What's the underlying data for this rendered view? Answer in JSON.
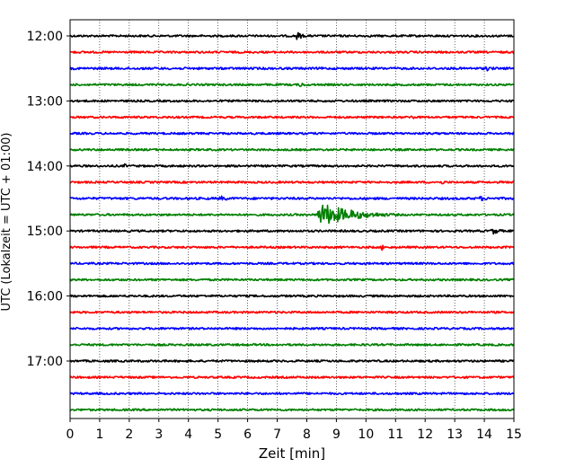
{
  "chart_data": {
    "type": "line",
    "subtype": "seismogram-helicorder",
    "xlabel": "Zeit  [min]",
    "ylabel": "UTC (Lokalzeit = UTC + 01:00)",
    "xlim": [
      0,
      15
    ],
    "x_ticks": [
      0,
      1,
      2,
      3,
      4,
      5,
      6,
      7,
      8,
      9,
      10,
      11,
      12,
      13,
      14,
      15
    ],
    "y_tick_labels": [
      "12:00",
      "13:00",
      "14:00",
      "15:00",
      "16:00",
      "17:00"
    ],
    "grid": "vertical dotted lines at each minute",
    "trace_colors": [
      "#000000",
      "#ff0000",
      "#0000ff",
      "#008000"
    ],
    "rows": [
      {
        "start": "12:00",
        "color": "#000000",
        "amplitude": 1.0,
        "events": [
          {
            "min": 7.6,
            "amp": 5,
            "dur": 0.6
          }
        ]
      },
      {
        "start": "12:15",
        "color": "#ff0000",
        "amplitude": 1.0,
        "events": []
      },
      {
        "start": "12:30",
        "color": "#0000ff",
        "amplitude": 1.1,
        "events": [
          {
            "min": 14.0,
            "amp": 3,
            "dur": 0.8
          }
        ]
      },
      {
        "start": "12:45",
        "color": "#008000",
        "amplitude": 1.0,
        "events": [
          {
            "min": 7.7,
            "amp": 3,
            "dur": 0.6
          }
        ]
      },
      {
        "start": "13:00",
        "color": "#000000",
        "amplitude": 1.0,
        "events": []
      },
      {
        "start": "13:15",
        "color": "#ff0000",
        "amplitude": 1.0,
        "events": [
          {
            "min": 11.5,
            "amp": 2.5,
            "dur": 0.5
          }
        ]
      },
      {
        "start": "13:30",
        "color": "#0000ff",
        "amplitude": 1.0,
        "events": []
      },
      {
        "start": "13:45",
        "color": "#008000",
        "amplitude": 1.0,
        "events": [
          {
            "min": 1.0,
            "amp": 2,
            "dur": 0.4
          }
        ]
      },
      {
        "start": "14:00",
        "color": "#000000",
        "amplitude": 1.0,
        "events": [
          {
            "min": 1.8,
            "amp": 2.5,
            "dur": 0.4
          }
        ]
      },
      {
        "start": "14:15",
        "color": "#ff0000",
        "amplitude": 1.0,
        "events": [
          {
            "min": 12.5,
            "amp": 2.5,
            "dur": 0.6
          }
        ]
      },
      {
        "start": "14:30",
        "color": "#0000ff",
        "amplitude": 1.1,
        "events": [
          {
            "min": 5.0,
            "amp": 3,
            "dur": 1.0
          },
          {
            "min": 13.8,
            "amp": 3,
            "dur": 0.8
          }
        ]
      },
      {
        "start": "14:45",
        "color": "#008000",
        "amplitude": 1.0,
        "events": [
          {
            "min": 8.3,
            "amp": 13,
            "dur": 2.8
          }
        ]
      },
      {
        "start": "15:00",
        "color": "#000000",
        "amplitude": 1.0,
        "events": [
          {
            "min": 14.2,
            "amp": 4,
            "dur": 0.8
          }
        ]
      },
      {
        "start": "15:15",
        "color": "#ff0000",
        "amplitude": 1.0,
        "events": [
          {
            "min": 10.5,
            "amp": 7,
            "dur": 0.15
          }
        ]
      },
      {
        "start": "15:30",
        "color": "#0000ff",
        "amplitude": 1.0,
        "events": []
      },
      {
        "start": "15:45",
        "color": "#008000",
        "amplitude": 1.0,
        "events": []
      },
      {
        "start": "16:00",
        "color": "#000000",
        "amplitude": 1.0,
        "events": []
      },
      {
        "start": "16:15",
        "color": "#ff0000",
        "amplitude": 1.0,
        "events": []
      },
      {
        "start": "16:30",
        "color": "#0000ff",
        "amplitude": 1.0,
        "events": []
      },
      {
        "start": "16:45",
        "color": "#008000",
        "amplitude": 1.0,
        "events": []
      },
      {
        "start": "17:00",
        "color": "#000000",
        "amplitude": 1.0,
        "events": []
      },
      {
        "start": "17:15",
        "color": "#ff0000",
        "amplitude": 1.0,
        "events": []
      },
      {
        "start": "17:30",
        "color": "#0000ff",
        "amplitude": 1.0,
        "events": []
      },
      {
        "start": "17:45",
        "color": "#008000",
        "amplitude": 1.0,
        "events": []
      }
    ]
  }
}
